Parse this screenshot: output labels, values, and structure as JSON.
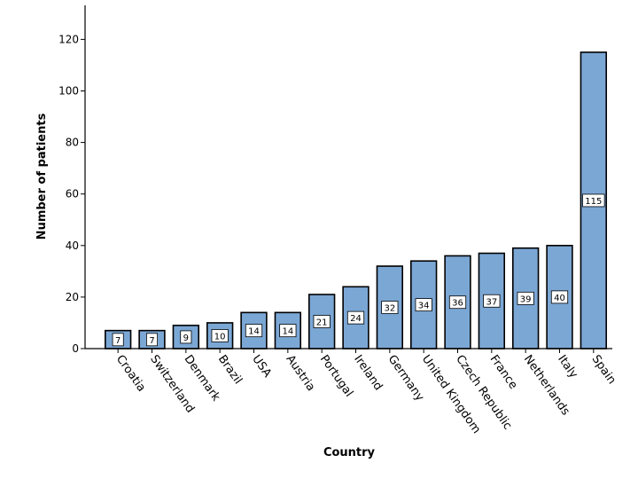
{
  "chart_data": {
    "type": "bar",
    "xlabel": "Country",
    "ylabel": "Number of patients",
    "ylim": [
      0,
      133
    ],
    "yticks": [
      0,
      20,
      40,
      60,
      80,
      100,
      120
    ],
    "grid": false,
    "bar_color": "#7ba7d5",
    "categories": [
      "Croatia",
      "Switzerland",
      "Denmark",
      "Brazil",
      "USA",
      "Austria",
      "Portugal",
      "Ireland",
      "Germany",
      "United Kingdom",
      "Czech Republic",
      "France",
      "Netherlands",
      "Italy",
      "Spain"
    ],
    "values": [
      7,
      7,
      9,
      10,
      14,
      14,
      21,
      24,
      32,
      34,
      36,
      37,
      39,
      40,
      115
    ],
    "data_labels": [
      "7",
      "7",
      "9",
      "10",
      "14",
      "14",
      "21",
      "24",
      "32",
      "34",
      "36",
      "37",
      "39",
      "40",
      "115"
    ]
  }
}
